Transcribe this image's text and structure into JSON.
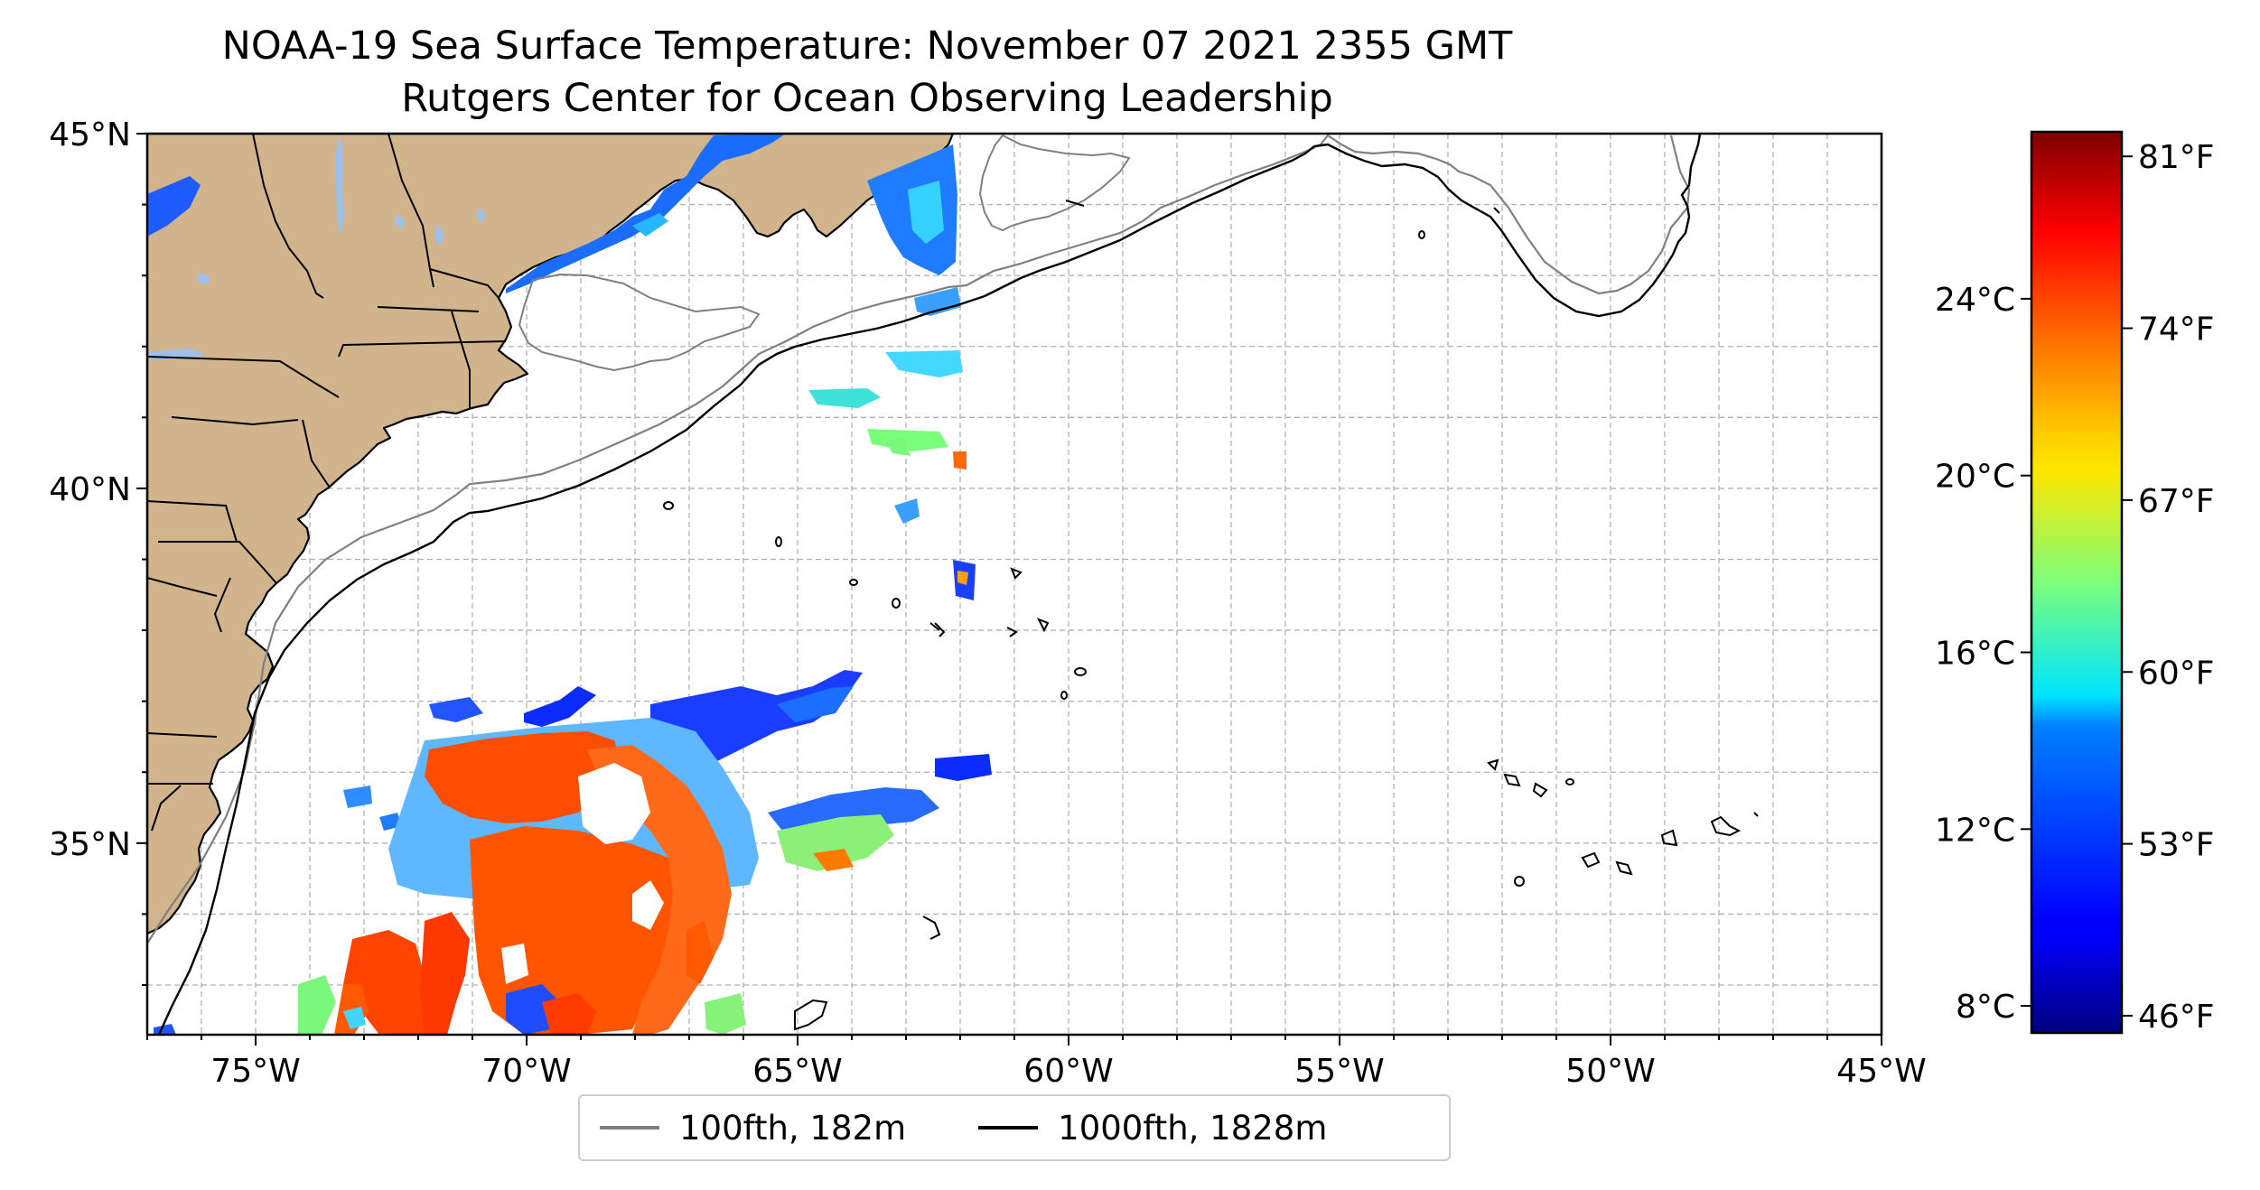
{
  "title": {
    "line1": "NOAA-19 Sea Surface Temperature: November 07 2021 2355 GMT",
    "line2": "Rutgers Center for Ocean Observing Leadership"
  },
  "map": {
    "lon_range": [
      -77,
      -45
    ],
    "lat_range": [
      32.3,
      45
    ],
    "lon_ticks": [
      {
        "value": -75,
        "label": "75°W"
      },
      {
        "value": -70,
        "label": "70°W"
      },
      {
        "value": -65,
        "label": "65°W"
      },
      {
        "value": -60,
        "label": "60°W"
      },
      {
        "value": -55,
        "label": "55°W"
      },
      {
        "value": -50,
        "label": "50°W"
      },
      {
        "value": -45,
        "label": "45°W"
      }
    ],
    "lat_ticks": [
      {
        "value": 45,
        "label": "45°N"
      },
      {
        "value": 40,
        "label": "40°N"
      },
      {
        "value": 35,
        "label": "35°N"
      }
    ],
    "grid": true,
    "colors": {
      "land": "#d2b48c",
      "lakes": "#9fc0e8",
      "isobath_100": "#888888",
      "isobath_1000": "#000000"
    }
  },
  "legend": {
    "placement": "bottom-center",
    "items": [
      {
        "label": "100fth, 182m",
        "color": "#808080"
      },
      {
        "label": "1000fth, 1828m",
        "color": "#000000"
      }
    ]
  },
  "colorbar": {
    "colormap": "jet",
    "range_f": [
      45.3,
      82
    ],
    "celsius_ticks": [
      {
        "value_f": 46.4,
        "label": "8°C"
      },
      {
        "value_f": 53.6,
        "label": "12°C"
      },
      {
        "value_f": 60.8,
        "label": "16°C"
      },
      {
        "value_f": 68.0,
        "label": "20°C"
      },
      {
        "value_f": 75.2,
        "label": "24°C"
      }
    ],
    "fahrenheit_ticks": [
      {
        "value_f": 46,
        "label": "46°F"
      },
      {
        "value_f": 53,
        "label": "53°F"
      },
      {
        "value_f": 60,
        "label": "60°F"
      },
      {
        "value_f": 67,
        "label": "67°F"
      },
      {
        "value_f": 74,
        "label": "74°F"
      },
      {
        "value_f": 81,
        "label": "81°F"
      }
    ]
  }
}
